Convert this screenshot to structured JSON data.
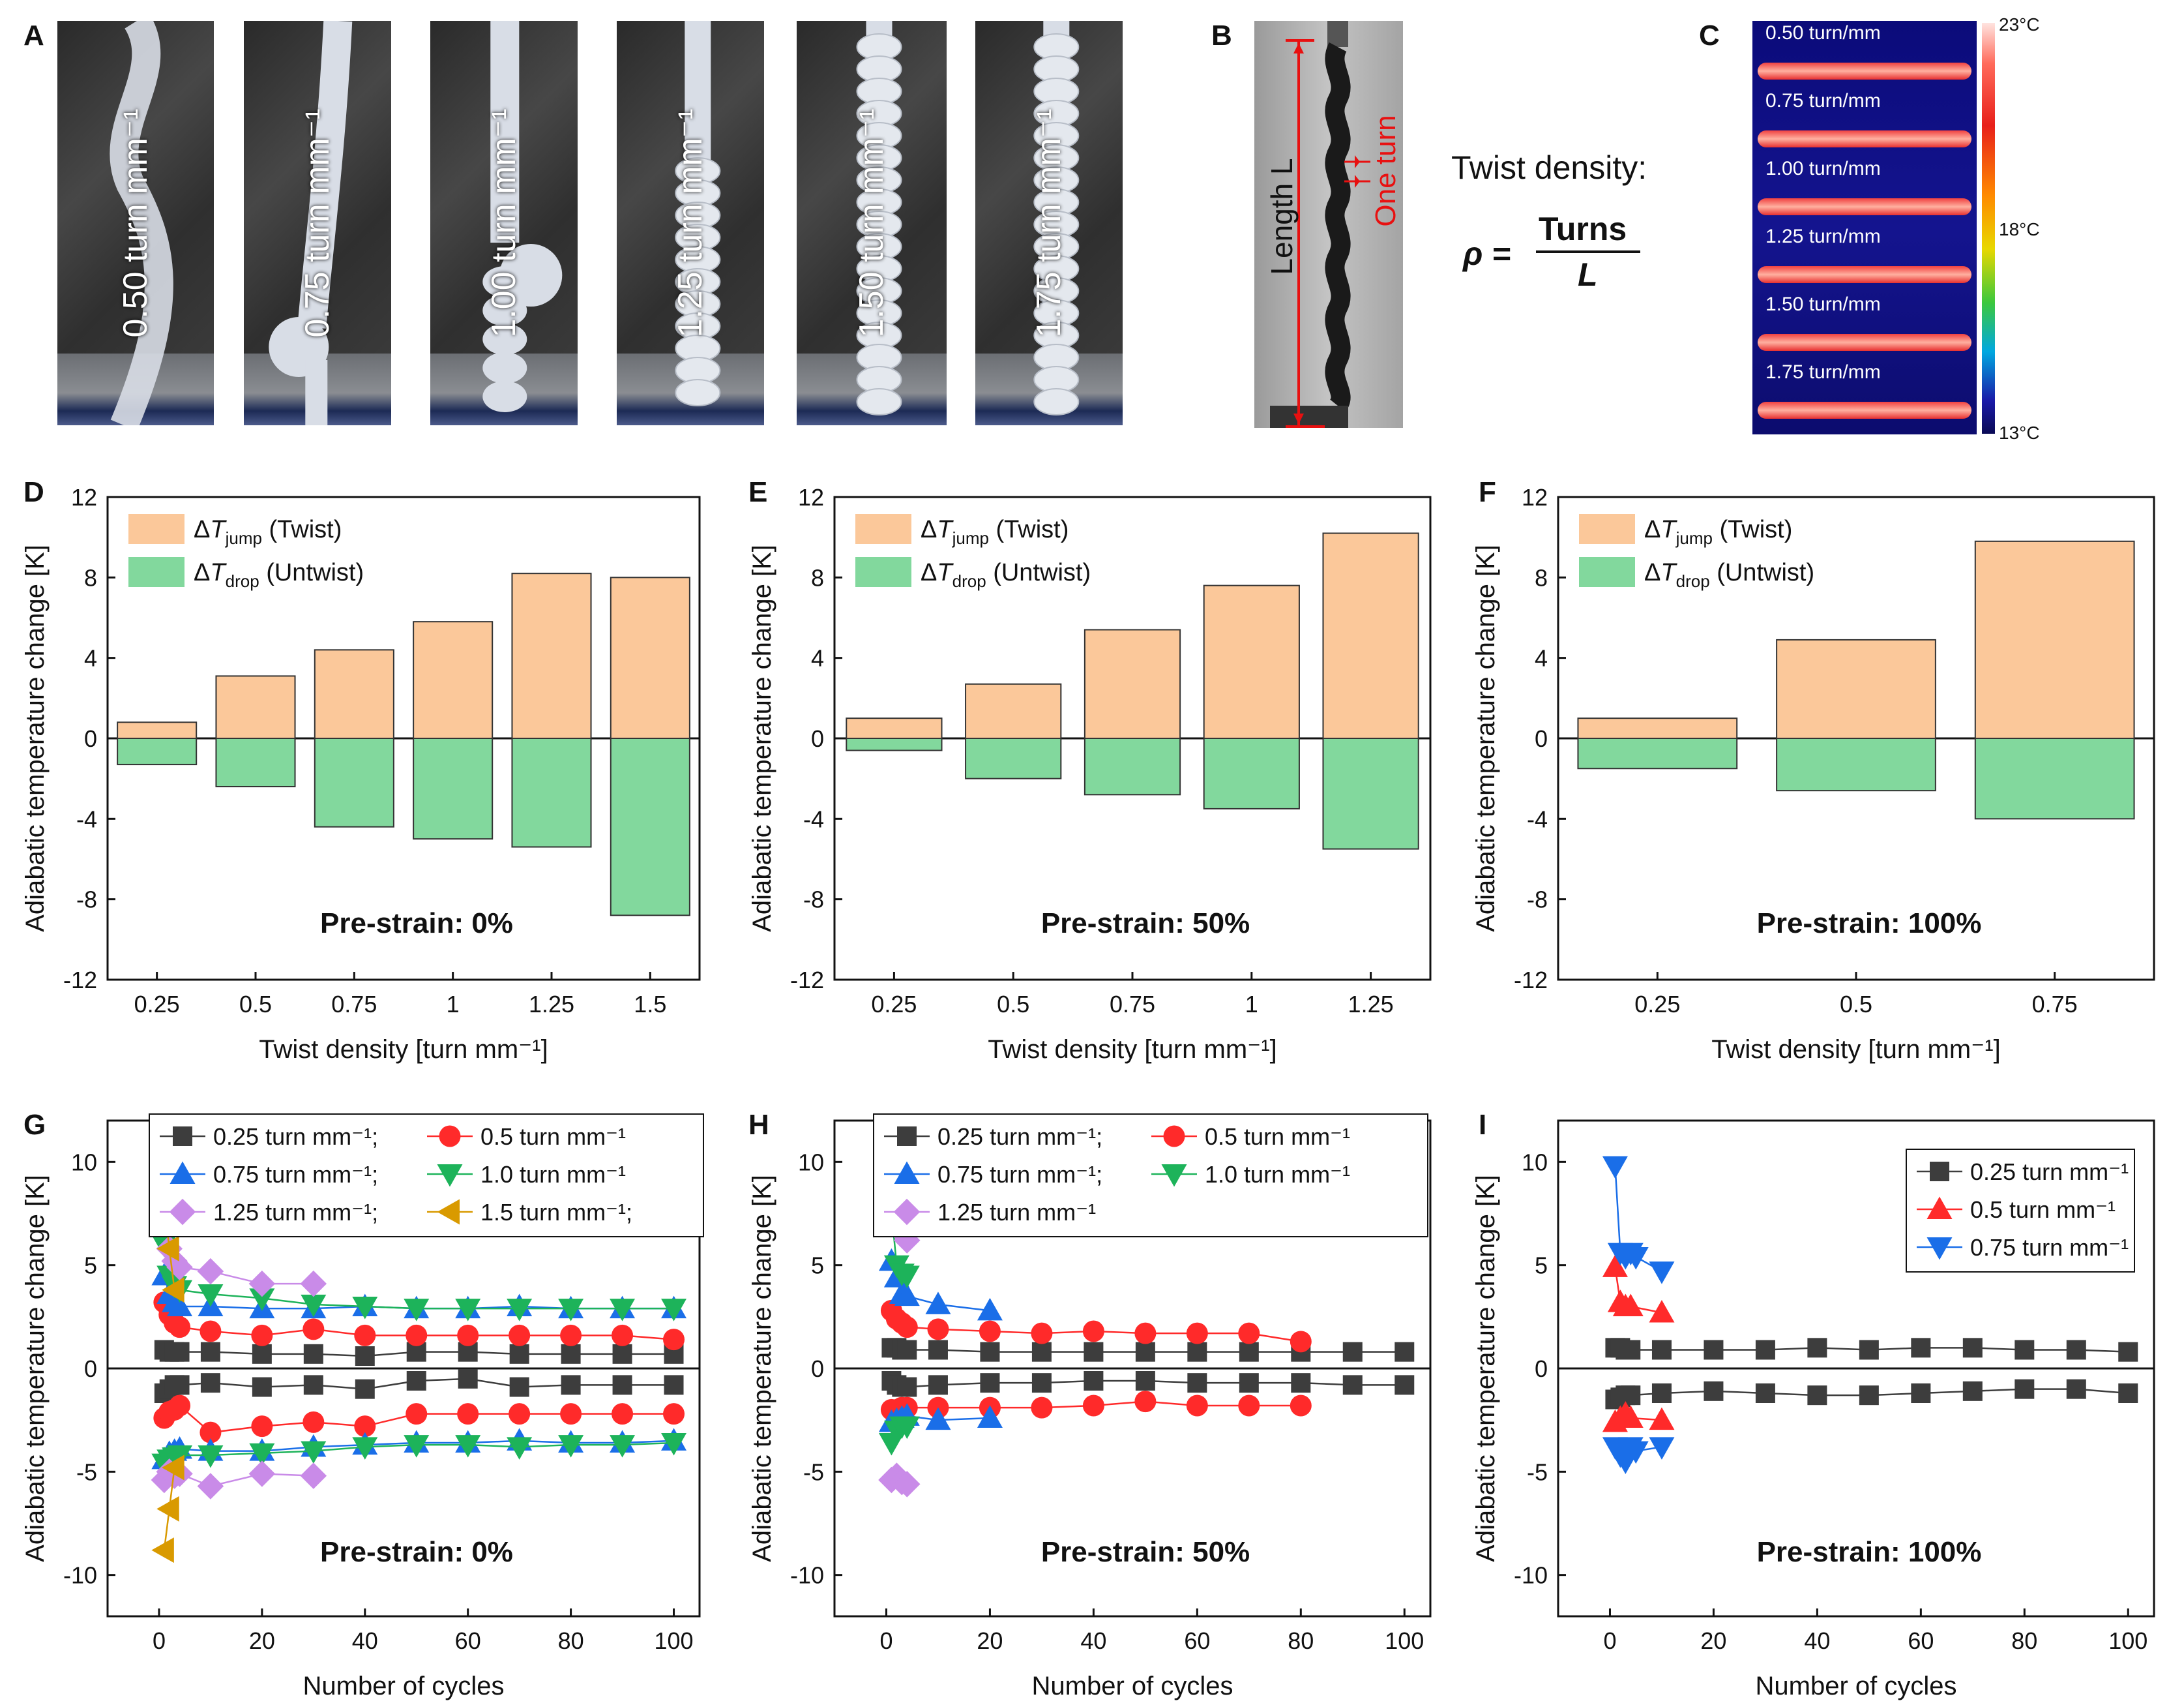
{
  "panel_letters": {
    "a": "A",
    "b": "B",
    "c": "C",
    "d": "D",
    "e": "E",
    "f": "F",
    "g": "G",
    "h": "H",
    "i": "I"
  },
  "photos": [
    {
      "label": "0.50 turn mm⁻¹"
    },
    {
      "label": "0.75 turn mm⁻¹"
    },
    {
      "label": "1.00 turn mm⁻¹"
    },
    {
      "label": "1.25 turn mm⁻¹"
    },
    {
      "label": "1.50 turn mm⁻¹"
    },
    {
      "label": "1.75 turn mm⁻¹"
    }
  ],
  "panel_b": {
    "length_label": "Length L",
    "one_turn_label": "One turn",
    "equation_title": "Twist density:",
    "rho": "ρ =",
    "numerator": "Turns",
    "denominator": "L"
  },
  "panel_c": {
    "rows": [
      "0.50 turn/mm",
      "0.75 turn/mm",
      "1.00 turn/mm",
      "1.25 turn/mm",
      "1.50 turn/mm",
      "1.75 turn/mm"
    ],
    "colorbar": {
      "max": "23°C",
      "mid": "18°C",
      "min": "13°C"
    }
  },
  "colors": {
    "jump_fill": "#fbc89a",
    "drop_fill": "#82d89d",
    "black": "#3d3d3d",
    "red": "#ff2a2a",
    "blue": "#1a6ee8",
    "green": "#1db35a",
    "violet": "#c98be8",
    "orange": "#d99a00"
  },
  "chart_data": [
    {
      "id": "D",
      "type": "bar",
      "categories": [
        "0.25",
        "0.5",
        "0.75",
        "1",
        "1.25",
        "1.5"
      ],
      "series": [
        {
          "name": "jump",
          "values": [
            0.8,
            3.1,
            4.4,
            5.8,
            8.2,
            8.0
          ]
        },
        {
          "name": "drop",
          "values": [
            -1.3,
            -2.4,
            -4.4,
            -5.0,
            -5.4,
            -8.8
          ]
        }
      ],
      "legend": [
        {
          "delta": "Δ",
          "T": "T",
          "sub": "jump",
          "suffix": " (Twist)"
        },
        {
          "delta": "Δ",
          "T": "T",
          "sub": "drop",
          "suffix": " (Untwist)"
        }
      ],
      "annotation": "Pre-strain: 0%",
      "xlabel": "Twist density [turn mm⁻¹]",
      "ylabel": "Adiabatic temperature change [K]",
      "ylim": [
        -12,
        12
      ],
      "yticks": [
        "12",
        "8",
        "4",
        "0",
        "-4",
        "-8",
        "-12"
      ]
    },
    {
      "id": "E",
      "type": "bar",
      "categories": [
        "0.25",
        "0.5",
        "0.75",
        "1",
        "1.25"
      ],
      "series": [
        {
          "name": "jump",
          "values": [
            1.0,
            2.7,
            5.4,
            7.6,
            10.2
          ]
        },
        {
          "name": "drop",
          "values": [
            -0.6,
            -2.0,
            -2.8,
            -3.5,
            -5.5
          ]
        }
      ],
      "legend": [
        {
          "delta": "Δ",
          "T": "T",
          "sub": "jump",
          "suffix": " (Twist)"
        },
        {
          "delta": "Δ",
          "T": "T",
          "sub": "drop",
          "suffix": " (Untwist)"
        }
      ],
      "annotation": "Pre-strain: 50%",
      "xlabel": "Twist density [turn mm⁻¹]",
      "ylabel": "Adiabatic temperature change [K]",
      "ylim": [
        -12,
        12
      ],
      "yticks": [
        "12",
        "8",
        "4",
        "0",
        "-4",
        "-8",
        "-12"
      ]
    },
    {
      "id": "F",
      "type": "bar",
      "categories": [
        "0.25",
        "0.5",
        "0.75"
      ],
      "series": [
        {
          "name": "jump",
          "values": [
            1.0,
            4.9,
            9.8
          ]
        },
        {
          "name": "drop",
          "values": [
            -1.5,
            -2.6,
            -4.0
          ]
        }
      ],
      "legend": [
        {
          "delta": "Δ",
          "T": "T",
          "sub": "jump",
          "suffix": " (Twist)"
        },
        {
          "delta": "Δ",
          "T": "T",
          "sub": "drop",
          "suffix": " (Untwist)"
        }
      ],
      "annotation": "Pre-strain: 100%",
      "xlabel": "Twist density [turn mm⁻¹]",
      "ylabel": "Adiabatic temperature change [K]",
      "ylim": [
        -12,
        12
      ],
      "yticks": [
        "12",
        "8",
        "4",
        "0",
        "-4",
        "-8",
        "-12"
      ]
    },
    {
      "id": "G",
      "type": "scatter",
      "xlabel": "Number of cycles",
      "ylabel": "Adiabatic temperature change [K]",
      "annotation": "Pre-strain: 0%",
      "xlim": [
        -10,
        105
      ],
      "ylim": [
        -12,
        12
      ],
      "xticks": [
        "0",
        "20",
        "40",
        "60",
        "80",
        "100"
      ],
      "yticks": [
        "10",
        "5",
        "0",
        "-5",
        "-10"
      ],
      "legend_cols": 2,
      "series": [
        {
          "name": "0.25 turn mm⁻¹;",
          "marker": "square",
          "color": "#3d3d3d",
          "x": [
            1,
            2,
            3,
            4,
            10,
            20,
            30,
            40,
            50,
            60,
            70,
            80,
            90,
            100
          ],
          "pos": [
            0.9,
            0.8,
            0.8,
            0.8,
            0.8,
            0.7,
            0.7,
            0.6,
            0.8,
            0.8,
            0.7,
            0.7,
            0.7,
            0.7
          ],
          "neg": [
            -1.2,
            -1.0,
            -0.8,
            -0.8,
            -0.7,
            -0.9,
            -0.8,
            -1.0,
            -0.6,
            -0.5,
            -0.9,
            -0.8,
            -0.8,
            -0.8
          ]
        },
        {
          "name": "0.5 turn mm⁻¹",
          "marker": "circle",
          "color": "#ff2a2a",
          "x": [
            1,
            2,
            3,
            4,
            10,
            20,
            30,
            40,
            50,
            60,
            70,
            80,
            90,
            100
          ],
          "pos": [
            3.2,
            2.6,
            2.2,
            2.0,
            1.8,
            1.6,
            1.9,
            1.6,
            1.6,
            1.6,
            1.6,
            1.6,
            1.6,
            1.4
          ],
          "neg": [
            -2.4,
            -2.1,
            -2.0,
            -1.8,
            -3.1,
            -2.8,
            -2.6,
            -2.8,
            -2.2,
            -2.2,
            -2.2,
            -2.2,
            -2.2,
            -2.2
          ]
        },
        {
          "name": "0.75 turn mm⁻¹;",
          "marker": "triangle-up",
          "color": "#1a6ee8",
          "x": [
            1,
            2,
            3,
            4,
            10,
            20,
            30,
            40,
            50,
            60,
            70,
            80,
            90,
            100
          ],
          "pos": [
            4.5,
            3.6,
            3.2,
            3.0,
            3.0,
            2.9,
            2.9,
            3.0,
            2.9,
            2.9,
            3.0,
            2.9,
            2.9,
            2.9
          ],
          "neg": [
            -4.4,
            -4.1,
            -4.0,
            -3.9,
            -4.0,
            -4.0,
            -3.8,
            -3.7,
            -3.6,
            -3.6,
            -3.5,
            -3.6,
            -3.6,
            -3.5
          ]
        },
        {
          "name": "1.0 turn mm⁻¹",
          "marker": "triangle-down",
          "color": "#1db35a",
          "x": [
            1,
            2,
            3,
            4,
            10,
            20,
            30,
            40,
            50,
            60,
            70,
            80,
            90,
            100
          ],
          "pos": [
            6.0,
            4.5,
            4.0,
            3.8,
            3.6,
            3.4,
            3.1,
            3.0,
            2.9,
            2.9,
            2.9,
            2.9,
            2.9,
            2.9
          ],
          "neg": [
            -4.6,
            -4.4,
            -4.3,
            -4.2,
            -4.2,
            -4.1,
            -4.0,
            -3.8,
            -3.7,
            -3.7,
            -3.8,
            -3.7,
            -3.7,
            -3.6
          ]
        },
        {
          "name": "1.25 turn mm⁻¹;",
          "marker": "diamond",
          "color": "#c98be8",
          "x": [
            1,
            2,
            3,
            4,
            10,
            20,
            30
          ],
          "pos": [
            8.2,
            5.8,
            5.2,
            4.9,
            4.7,
            4.1,
            4.1
          ],
          "neg": [
            -5.4,
            -5.0,
            -5.2,
            -5.1,
            -5.7,
            -5.1,
            -5.2
          ]
        },
        {
          "name": "1.5 turn mm⁻¹;",
          "marker": "triangle-left",
          "color": "#d99a00",
          "x": [
            1,
            2,
            3
          ],
          "pos": [
            8.0,
            5.8,
            3.8
          ],
          "neg": [
            -8.8,
            -6.8,
            -4.8
          ]
        }
      ]
    },
    {
      "id": "H",
      "type": "scatter",
      "xlabel": "Number of cycles",
      "ylabel": "Adiabatic temperature change [K]",
      "annotation": "Pre-strain: 50%",
      "xlim": [
        -10,
        105
      ],
      "ylim": [
        -12,
        12
      ],
      "xticks": [
        "0",
        "20",
        "40",
        "60",
        "80",
        "100"
      ],
      "yticks": [
        "10",
        "5",
        "0",
        "-5",
        "-10"
      ],
      "legend_cols": 2,
      "series": [
        {
          "name": "0.25 turn mm⁻¹;",
          "marker": "square",
          "color": "#3d3d3d",
          "x": [
            1,
            2,
            3,
            4,
            10,
            20,
            30,
            40,
            50,
            60,
            70,
            80,
            90,
            100
          ],
          "pos": [
            1.0,
            1.0,
            0.9,
            0.9,
            0.9,
            0.8,
            0.8,
            0.8,
            0.8,
            0.8,
            0.8,
            0.8,
            0.8,
            0.8
          ],
          "neg": [
            -0.6,
            -0.8,
            -0.9,
            -0.9,
            -0.8,
            -0.7,
            -0.7,
            -0.6,
            -0.6,
            -0.7,
            -0.7,
            -0.7,
            -0.8,
            -0.8
          ]
        },
        {
          "name": "0.5 turn mm⁻¹",
          "marker": "circle",
          "color": "#ff2a2a",
          "x": [
            1,
            2,
            3,
            4,
            10,
            20,
            30,
            40,
            50,
            60,
            70,
            80
          ],
          "pos": [
            2.8,
            2.4,
            2.2,
            2.0,
            1.9,
            1.8,
            1.7,
            1.8,
            1.7,
            1.7,
            1.7,
            1.3
          ],
          "neg": [
            -2.0,
            -2.0,
            -1.9,
            -1.9,
            -1.9,
            -1.9,
            -1.9,
            -1.8,
            -1.6,
            -1.8,
            -1.8,
            -1.8
          ]
        },
        {
          "name": "0.75 turn mm⁻¹;",
          "marker": "triangle-up",
          "color": "#1a6ee8",
          "x": [
            1,
            2,
            3,
            4,
            10,
            20
          ],
          "pos": [
            5.2,
            4.4,
            3.6,
            3.5,
            3.1,
            2.8
          ],
          "neg": [
            -2.6,
            -2.5,
            -2.4,
            -2.3,
            -2.5,
            -2.4
          ]
        },
        {
          "name": "1.0 turn mm⁻¹",
          "marker": "triangle-down",
          "color": "#1db35a",
          "x": [
            1,
            2,
            3,
            4
          ],
          "pos": [
            7.6,
            5.0,
            4.6,
            4.5
          ],
          "neg": [
            -3.6,
            -3.0,
            -2.8,
            -2.8
          ]
        },
        {
          "name": "1.25 turn mm⁻¹",
          "marker": "diamond",
          "color": "#c98be8",
          "x": [
            1,
            2,
            3,
            4
          ],
          "pos": [
            10.2,
            7.2,
            6.6,
            6.2
          ],
          "neg": [
            -5.4,
            -5.2,
            -5.5,
            -5.6
          ]
        }
      ]
    },
    {
      "id": "I",
      "type": "scatter",
      "xlabel": "Number of cycles",
      "ylabel": "Adiabatic temperature change [K]",
      "annotation": "Pre-strain: 100%",
      "xlim": [
        -10,
        105
      ],
      "ylim": [
        -12,
        12
      ],
      "xticks": [
        "0",
        "20",
        "40",
        "60",
        "80",
        "100"
      ],
      "yticks": [
        "10",
        "5",
        "0",
        "-5",
        "-10"
      ],
      "legend_cols": 1,
      "series": [
        {
          "name": "0.25 turn mm⁻¹",
          "marker": "square",
          "color": "#3d3d3d",
          "x": [
            1,
            2,
            3,
            4,
            10,
            20,
            30,
            40,
            50,
            60,
            70,
            80,
            90,
            100
          ],
          "pos": [
            1.0,
            1.0,
            0.9,
            0.9,
            0.9,
            0.9,
            0.9,
            1.0,
            0.9,
            1.0,
            1.0,
            0.9,
            0.9,
            0.8
          ],
          "neg": [
            -1.5,
            -1.4,
            -1.3,
            -1.3,
            -1.2,
            -1.1,
            -1.2,
            -1.3,
            -1.3,
            -1.2,
            -1.1,
            -1.0,
            -1.0,
            -1.2
          ]
        },
        {
          "name": "0.5 turn mm⁻¹",
          "marker": "triangle-up",
          "color": "#ff2a2a",
          "x": [
            1,
            2,
            3,
            4,
            10
          ],
          "pos": [
            4.9,
            3.2,
            3.0,
            3.0,
            2.7
          ],
          "neg": [
            -2.6,
            -2.4,
            -2.2,
            -2.4,
            -2.5
          ]
        },
        {
          "name": "0.75 turn mm⁻¹",
          "marker": "triangle-down",
          "color": "#1a6ee8",
          "x": [
            1,
            2,
            3,
            4,
            5,
            10
          ],
          "pos": [
            9.8,
            5.6,
            5.4,
            5.6,
            5.4,
            4.7
          ],
          "neg": [
            -3.8,
            -4.2,
            -4.5,
            -3.8,
            -4.0,
            -3.8
          ]
        }
      ]
    }
  ]
}
